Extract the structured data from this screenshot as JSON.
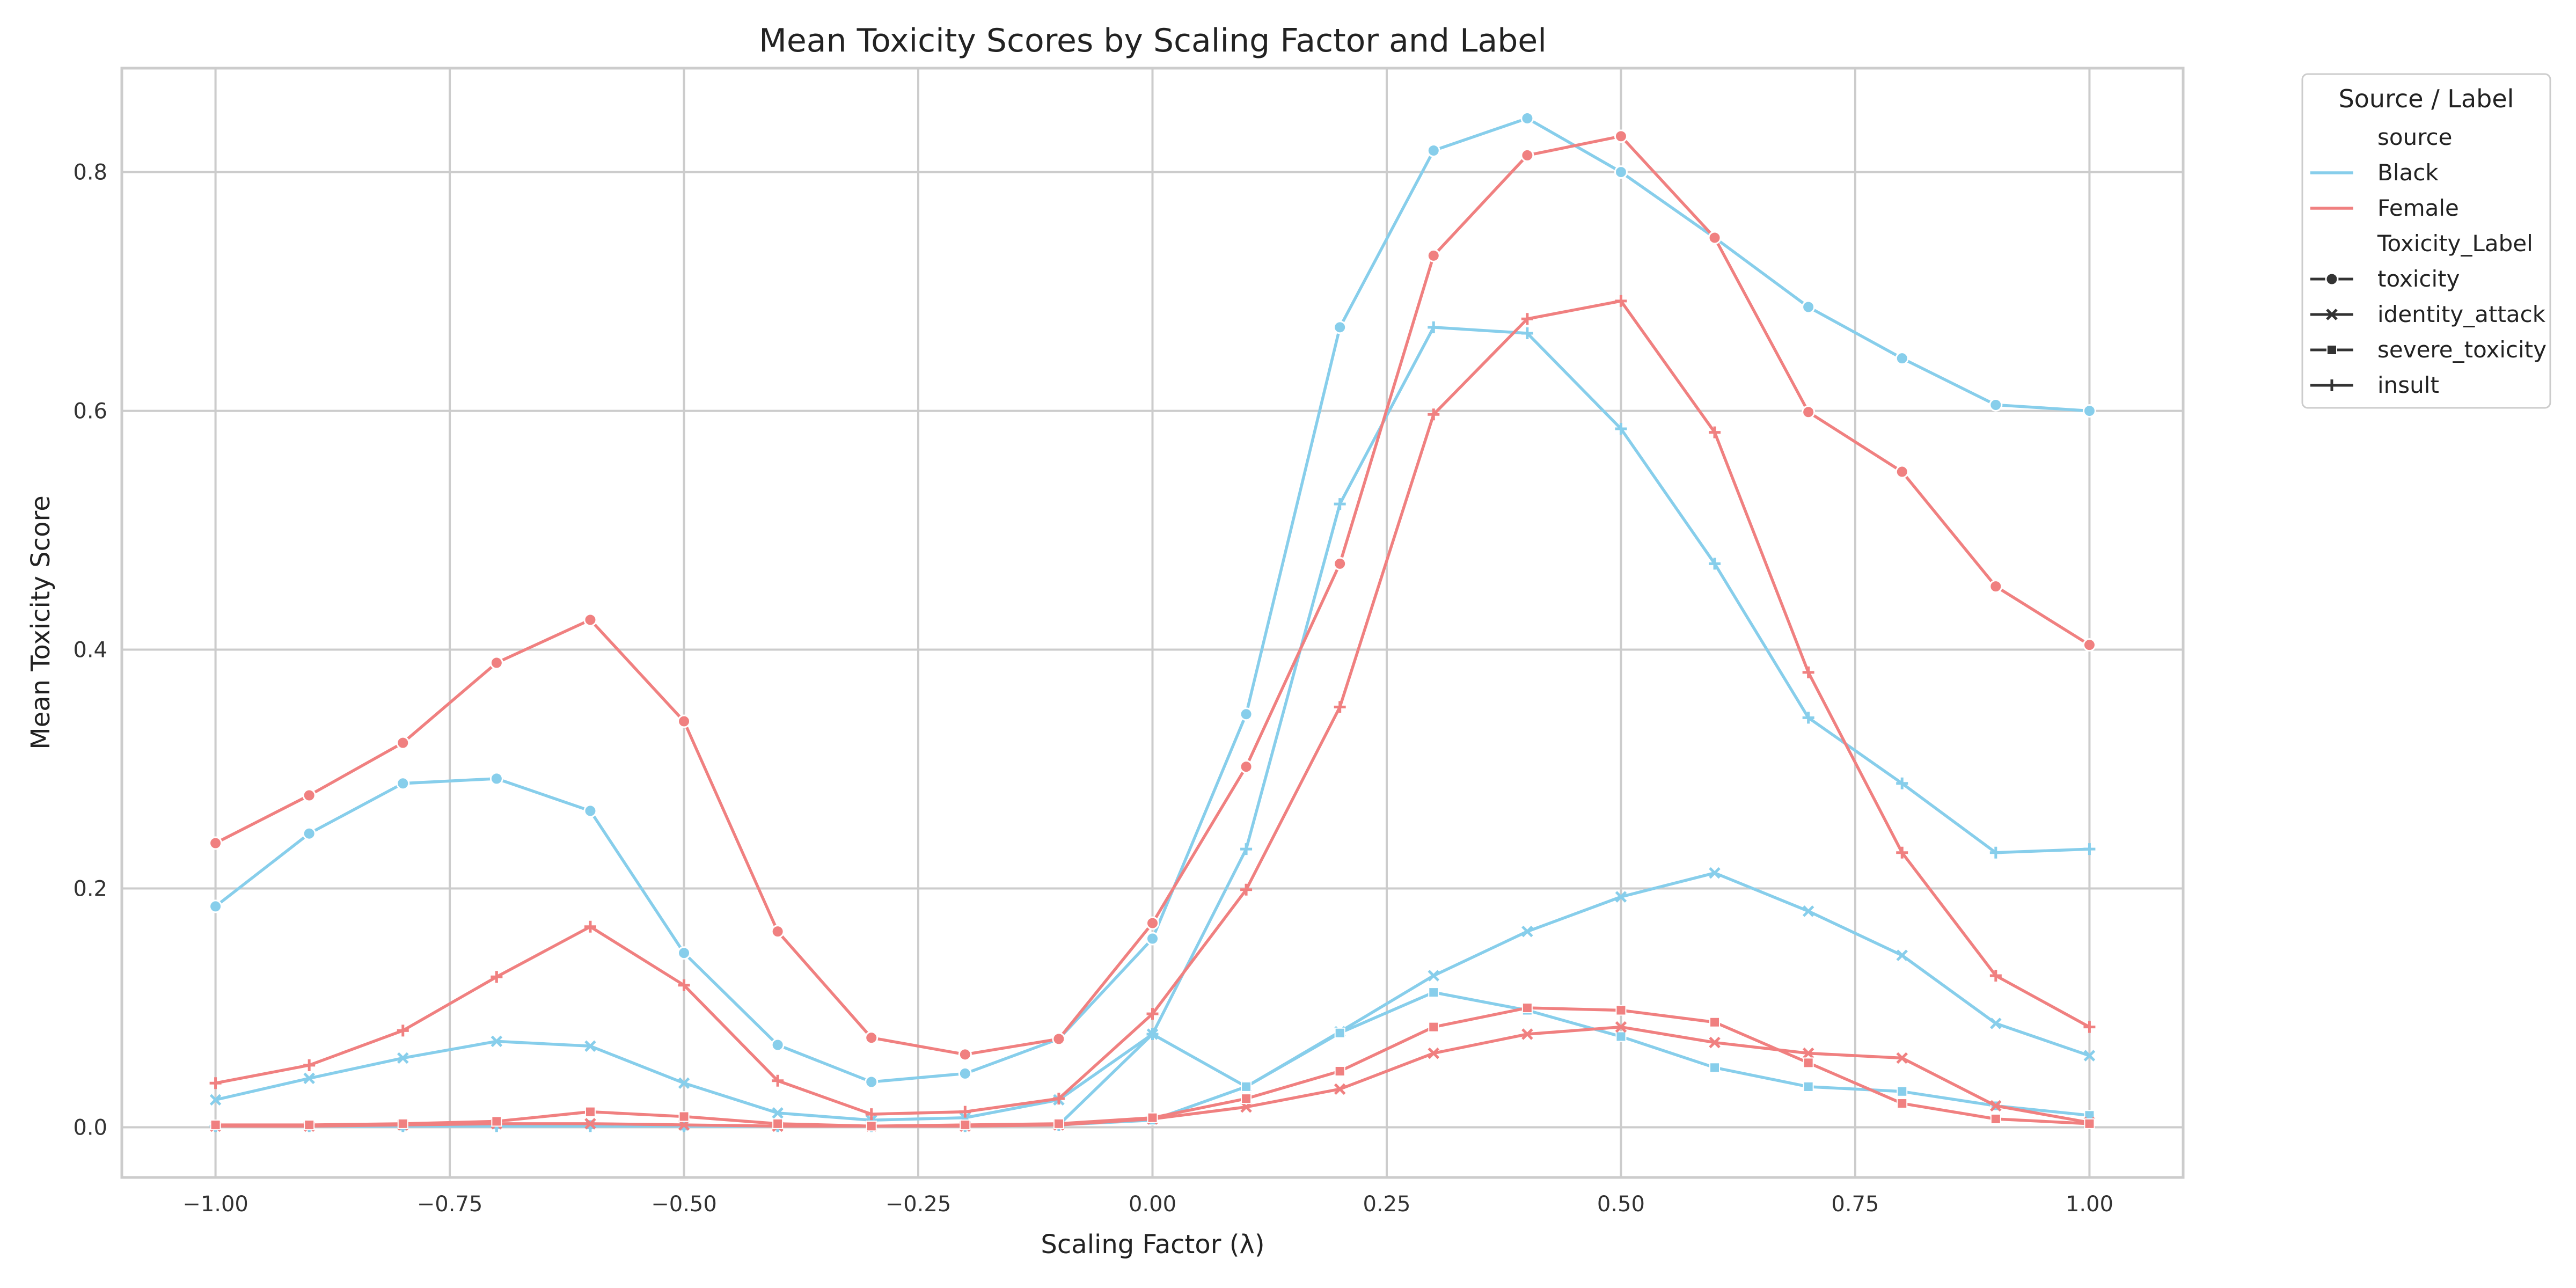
{
  "chart_data": {
    "type": "line",
    "title": "Mean Toxicity Scores by Scaling Factor and Label",
    "xlabel": "Scaling Factor (λ)",
    "ylabel": "Mean Toxicity Score",
    "xlim": [
      -1.1,
      1.1
    ],
    "ylim": [
      -0.042,
      0.887
    ],
    "grid": true,
    "x_ticks": [
      -1.0,
      -0.75,
      -0.5,
      -0.25,
      0.0,
      0.25,
      0.5,
      0.75,
      1.0
    ],
    "x_tick_labels": [
      "−1.00",
      "−0.75",
      "−0.50",
      "−0.25",
      "0.00",
      "0.25",
      "0.50",
      "0.75",
      "1.00"
    ],
    "y_ticks": [
      0.0,
      0.2,
      0.4,
      0.6,
      0.8
    ],
    "y_tick_labels": [
      "0.0",
      "0.2",
      "0.4",
      "0.6",
      "0.8"
    ],
    "x": [
      -1.0,
      -0.9,
      -0.8,
      -0.7,
      -0.6,
      -0.5,
      -0.4,
      -0.3,
      -0.2,
      -0.1,
      0.0,
      0.1,
      0.2,
      0.3,
      0.4,
      0.5,
      0.6,
      0.7,
      0.8,
      0.9,
      1.0
    ],
    "colors": {
      "Black": "#87ceeb",
      "Female": "#f08080"
    },
    "legend": {
      "title": "Source / Label",
      "placement": "outside-upper-right",
      "source_header": "source",
      "sources": [
        "Black",
        "Female"
      ],
      "label_header": "Toxicity_Label",
      "labels": [
        {
          "name": "toxicity",
          "marker": "circle"
        },
        {
          "name": "identity_attack",
          "marker": "x"
        },
        {
          "name": "severe_toxicity",
          "marker": "square"
        },
        {
          "name": "insult",
          "marker": "plus"
        }
      ]
    },
    "series": [
      {
        "source": "Black",
        "label": "toxicity",
        "marker": "circle",
        "values": [
          0.185,
          0.246,
          0.288,
          0.292,
          0.265,
          0.146,
          0.069,
          0.038,
          0.045,
          0.074,
          0.158,
          0.346,
          0.67,
          0.818,
          0.845,
          0.8,
          0.745,
          0.687,
          0.644,
          0.605,
          0.6
        ]
      },
      {
        "source": "Black",
        "label": "identity_attack",
        "marker": "x",
        "values": [
          0.023,
          0.041,
          0.058,
          0.072,
          0.068,
          0.037,
          0.012,
          0.006,
          0.008,
          0.023,
          0.078,
          0.034,
          0.08,
          0.127,
          0.164,
          0.193,
          0.213,
          0.181,
          0.144,
          0.087,
          0.06
        ]
      },
      {
        "source": "Black",
        "label": "severe_toxicity",
        "marker": "square",
        "values": [
          0.001,
          0.001,
          0.001,
          0.002,
          0.002,
          0.001,
          0.001,
          0.001,
          0.001,
          0.002,
          0.006,
          0.034,
          0.079,
          0.113,
          0.098,
          0.076,
          0.05,
          0.034,
          0.03,
          0.018,
          0.01
        ]
      },
      {
        "source": "Black",
        "label": "insult",
        "marker": "plus",
        "values": [
          0.001,
          0.001,
          0.001,
          0.001,
          0.001,
          0.001,
          0.001,
          0.001,
          0.001,
          0.002,
          0.078,
          0.233,
          0.522,
          0.67,
          0.665,
          0.585,
          0.472,
          0.343,
          0.288,
          0.23,
          0.233
        ]
      },
      {
        "source": "Female",
        "label": "toxicity",
        "marker": "circle",
        "values": [
          0.238,
          0.278,
          0.322,
          0.389,
          0.425,
          0.34,
          0.164,
          0.075,
          0.061,
          0.074,
          0.171,
          0.302,
          0.472,
          0.73,
          0.814,
          0.83,
          0.745,
          0.599,
          0.549,
          0.453,
          0.404
        ]
      },
      {
        "source": "Female",
        "label": "identity_attack",
        "marker": "x",
        "values": [
          0.001,
          0.001,
          0.002,
          0.003,
          0.003,
          0.002,
          0.001,
          0.001,
          0.001,
          0.002,
          0.007,
          0.017,
          0.032,
          0.062,
          0.078,
          0.084,
          0.071,
          0.062,
          0.058,
          0.018,
          0.004
        ]
      },
      {
        "source": "Female",
        "label": "severe_toxicity",
        "marker": "square",
        "values": [
          0.002,
          0.002,
          0.003,
          0.005,
          0.013,
          0.009,
          0.003,
          0.001,
          0.002,
          0.003,
          0.008,
          0.024,
          0.047,
          0.084,
          0.1,
          0.098,
          0.088,
          0.054,
          0.02,
          0.007,
          0.003
        ]
      },
      {
        "source": "Female",
        "label": "insult",
        "marker": "plus",
        "values": [
          0.037,
          0.052,
          0.081,
          0.126,
          0.168,
          0.119,
          0.039,
          0.011,
          0.013,
          0.024,
          0.095,
          0.199,
          0.352,
          0.597,
          0.677,
          0.692,
          0.582,
          0.381,
          0.23,
          0.127,
          0.084
        ]
      }
    ]
  }
}
